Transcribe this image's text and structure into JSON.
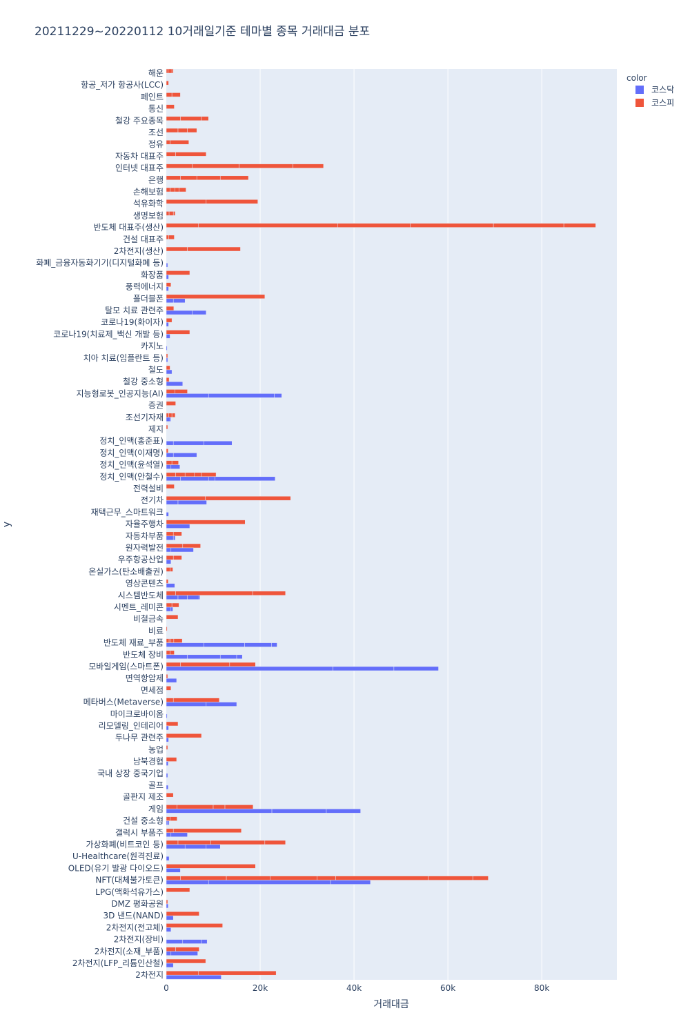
{
  "chart_data": {
    "type": "bar",
    "orientation": "horizontal",
    "barmode": "stacked",
    "title": "20211229~20220112 10거래일기준 테마별 종목 거래대금 분포",
    "xlabel": "거래대금",
    "ylabel": "y",
    "xlim": [
      0,
      96000
    ],
    "x_ticks": [
      {
        "value": 0,
        "label": "0"
      },
      {
        "value": 20000,
        "label": "20k"
      },
      {
        "value": 40000,
        "label": "40k"
      },
      {
        "value": 60000,
        "label": "60k"
      },
      {
        "value": 80000,
        "label": "80k"
      }
    ],
    "grid": true,
    "legend": {
      "title": "color",
      "position": "top-right"
    },
    "colors": {
      "코스닥": "#636efa",
      "코스피": "#ef553b"
    },
    "series": [
      {
        "name": "코스닥",
        "color": "#636efa"
      },
      {
        "name": "코스피",
        "color": "#ef553b"
      }
    ],
    "categories": [
      "해운",
      "항공_저가 항공사(LCC)",
      "페인트",
      "통신",
      "철강 주요종목",
      "조선",
      "정유",
      "자동차 대표주",
      "인터넷 대표주",
      "은행",
      "손해보험",
      "석유화학",
      "생명보험",
      "반도체 대표주(생산)",
      "건설 대표주",
      "2차전지(생산)",
      "화폐_금융자동화기기(디지털화폐 등)",
      "화장품",
      "풍력에너지",
      "폴더블폰",
      "탈모 치료 관련주",
      "코로나19(화이자)",
      "코로나19(치료제_백신 개발 등)",
      "카지노",
      "치아 치료(임플란트 등)",
      "철도",
      "철강 중소형",
      "지능형로봇_인공지능(AI)",
      "증권",
      "조선기자재",
      "제지",
      "정치_인맥(홍준표)",
      "정치_인맥(이재명)",
      "정치_인맥(윤석열)",
      "정치_인맥(안철수)",
      "전력설비",
      "전기차",
      "재택근무_스마트워크",
      "자율주행차",
      "자동차부품",
      "원자력발전",
      "우주항공산업",
      "온실가스(탄소배출권)",
      "영상콘텐츠",
      "시스템반도체",
      "시멘트_레미콘",
      "비철금속",
      "비료",
      "반도체 재료_부품",
      "반도체 장비",
      "모바일게임(스마트폰)",
      "면역항암제",
      "면세점",
      "메타버스(Metaverse)",
      "마이크로바이옴",
      "리모델링_인테리어",
      "두나무 관련주",
      "농업",
      "남북경협",
      "국내 상장 중국기업",
      "골프",
      "골판지 제조",
      "게임",
      "건설 중소형",
      "갤럭시 부품주",
      "가상화폐(비트코인 등)",
      "U-Healthcare(원격진료)",
      "OLED(유기 발광 다이오드)",
      "NFT(대체불가토큰)",
      "LPG(액화석유가스)",
      "DMZ 평화공원",
      "3D 낸드(NAND)",
      "2차전지(전고체)",
      "2차전지(장비)",
      "2차전지(소재_부품)",
      "2차전지(LFP_리튬인산철)",
      "2차전지"
    ],
    "kospi": [
      [
        400,
        800,
        300
      ],
      [
        500
      ],
      [
        1200,
        1800
      ],
      [
        1700
      ],
      [
        3000,
        4500,
        1500
      ],
      [
        2500,
        2000,
        2000
      ],
      [
        800,
        4000
      ],
      [
        2000,
        6500
      ],
      [
        5500,
        10000,
        11500,
        6500
      ],
      [
        3000,
        3500,
        5000,
        6000
      ],
      [
        800,
        1000,
        900,
        1500
      ],
      [
        8500,
        11000
      ],
      [
        600,
        900,
        400
      ],
      [
        6800,
        29700,
        15500,
        17700,
        15000,
        6800
      ],
      [
        500,
        1200
      ],
      [
        4500,
        11300
      ],
      [],
      [
        5000
      ],
      [
        1000
      ],
      [
        21000
      ],
      [
        1600
      ],
      [
        1200
      ],
      [
        5000
      ],
      [],
      [
        300
      ],
      [
        800
      ],
      [
        600
      ],
      [
        1800,
        2700
      ],
      [
        2000
      ],
      [
        500,
        700,
        700
      ],
      [
        300
      ],
      [],
      [
        400
      ],
      [
        1200,
        1400
      ],
      [
        2000,
        2000,
        2000,
        1500,
        3100
      ],
      [
        1700
      ],
      [
        8300,
        18200
      ],
      [],
      [
        16800
      ],
      [
        1500,
        1800
      ],
      [
        3500,
        3800
      ],
      [
        1500,
        1800
      ],
      [
        800,
        600
      ],
      [
        400
      ],
      [
        2000,
        16400,
        7000
      ],
      [
        1200,
        1500
      ],
      [
        2500
      ],
      [
        200
      ],
      [
        600,
        400,
        600,
        1800
      ],
      [
        800,
        900
      ],
      [
        3000,
        10500,
        5500
      ],
      [
        300
      ],
      [
        1000
      ],
      [
        1500,
        9800
      ],
      [],
      [
        2500
      ],
      [
        7500
      ],
      [
        300
      ],
      [
        2200
      ],
      [],
      [],
      [
        1500
      ],
      [
        2300,
        7700,
        2500,
        6000
      ],
      [
        800,
        1500
      ],
      [
        1500,
        14500
      ],
      [
        2500,
        7000,
        11500,
        4400
      ],
      [],
      [
        19000
      ],
      [
        3000,
        9800,
        9300,
        10000,
        4000,
        19700,
        9500,
        3300
      ],
      [
        5000
      ],
      [
        300
      ],
      [
        7000
      ],
      [
        12000
      ],
      [],
      [
        2000,
        5000
      ],
      [
        8400
      ],
      [
        6800,
        16600
      ]
    ],
    "kosdaq": [
      [],
      [],
      [],
      [],
      [],
      [],
      [],
      [],
      [],
      [],
      [],
      [],
      [],
      [],
      [],
      [],
      [
        300
      ],
      [
        500
      ],
      [
        500
      ],
      [
        1500,
        2500
      ],
      [
        5500,
        3000
      ],
      [
        500
      ],
      [
        800
      ],
      [
        200
      ],
      [
        300
      ],
      [
        1200
      ],
      [
        3500
      ],
      [
        9000,
        14000,
        1600
      ],
      [],
      [
        800,
        200
      ],
      [],
      [
        1500,
        6500,
        6000
      ],
      [
        1500,
        5000
      ],
      [
        1000,
        1900
      ],
      [
        3000,
        6000,
        1400,
        12800
      ],
      [],
      [
        2500,
        6100
      ],
      [
        500
      ],
      [
        5000
      ],
      [
        1500,
        400
      ],
      [
        1000,
        4800
      ],
      [
        1000
      ],
      [],
      [
        1800
      ],
      [
        2500,
        2000,
        2500,
        200
      ],
      [
        1000,
        400
      ],
      [],
      [],
      [
        8000,
        8700,
        5700,
        1200
      ],
      [
        4500,
        7000,
        3500,
        1200
      ],
      [
        35500,
        13000,
        9500
      ],
      [
        2200
      ],
      [],
      [
        8500,
        6500
      ],
      [
        200
      ],
      [
        500
      ],
      [
        500
      ],
      [],
      [
        400
      ],
      [
        300
      ],
      [
        400
      ],
      [],
      [
        22500,
        11600,
        7300
      ],
      [
        300,
        300
      ],
      [
        1000,
        3500
      ],
      [
        4000,
        4500,
        3000
      ],
      [
        600
      ],
      [
        3000
      ],
      [
        9000,
        26000,
        8500
      ],
      [],
      [
        400
      ],
      [
        1500
      ],
      [
        1000
      ],
      [
        3500,
        4000,
        1200
      ],
      [
        1000,
        5700
      ],
      [
        1500
      ],
      [
        11700
      ]
    ]
  }
}
